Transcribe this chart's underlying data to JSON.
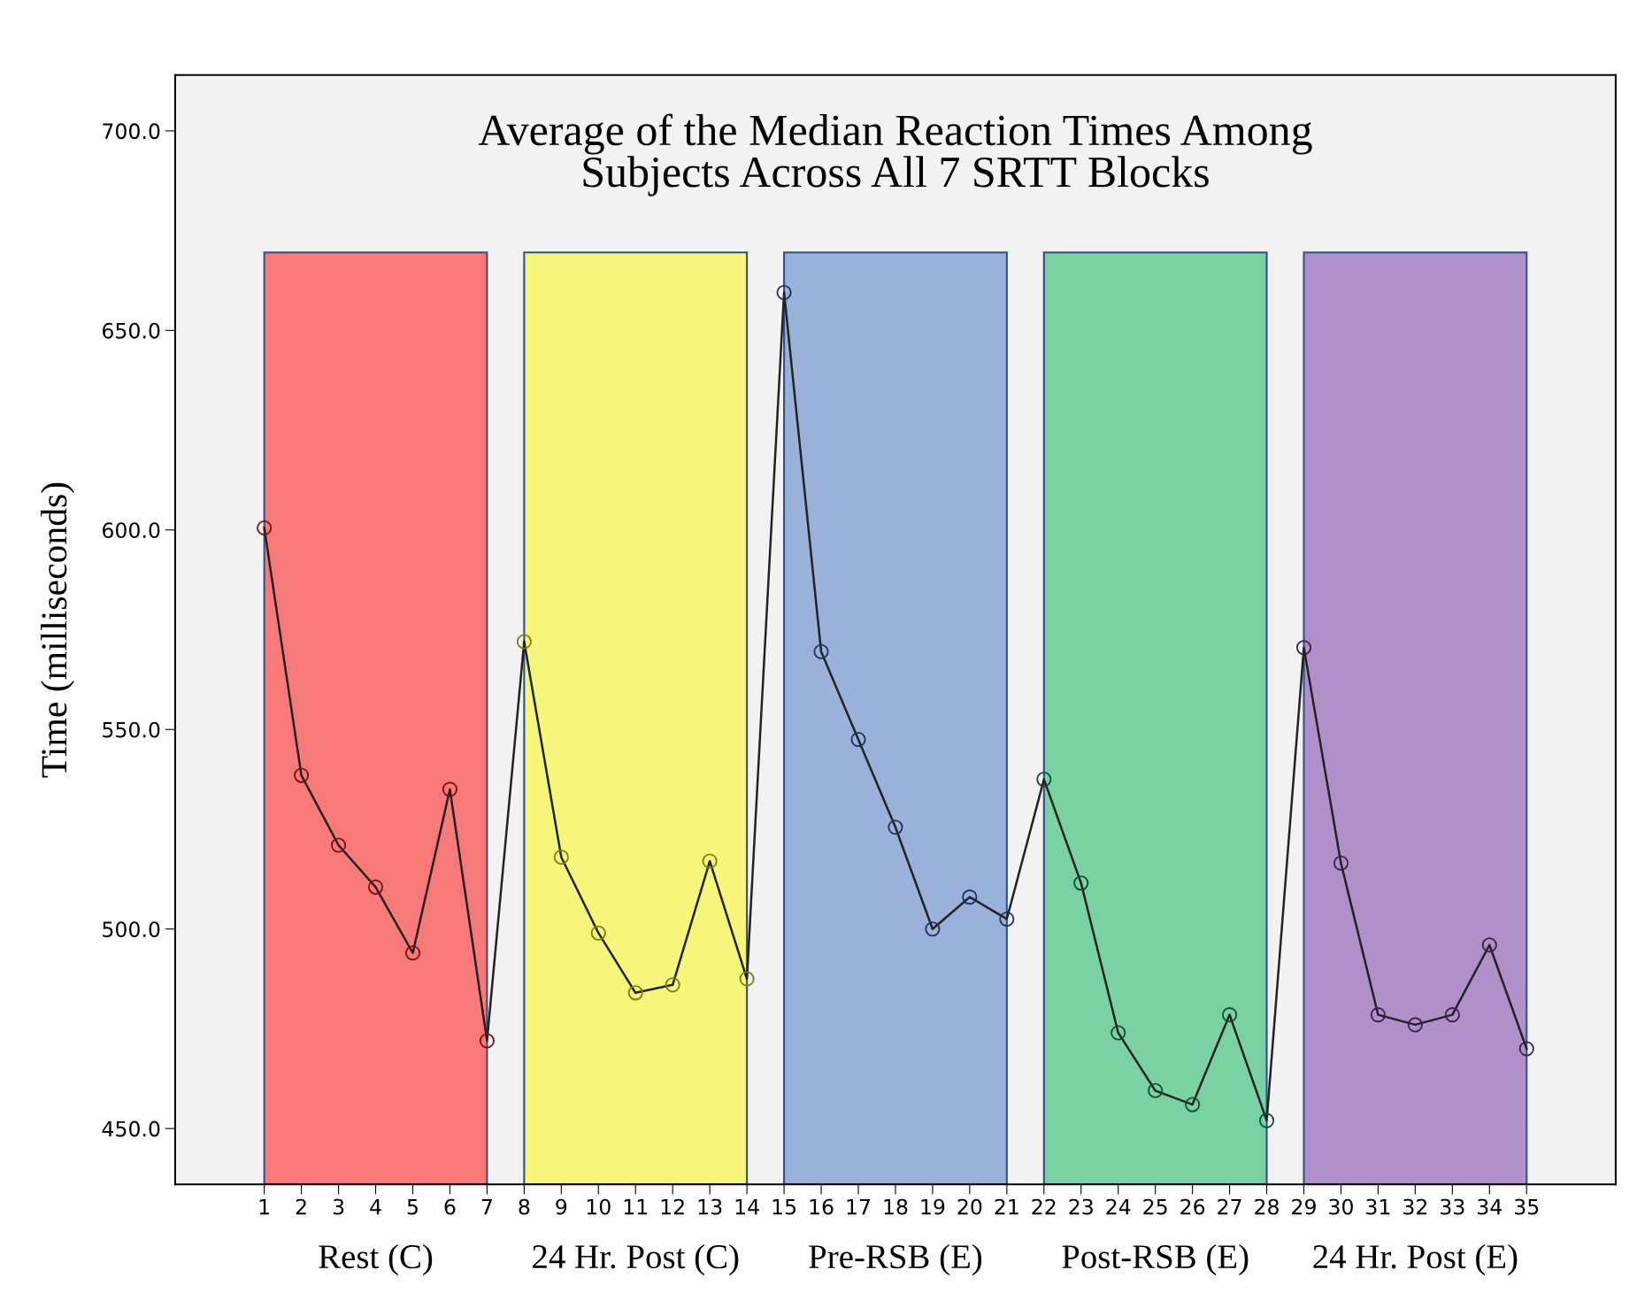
{
  "chart_data": {
    "type": "line",
    "title": "Average of the Median Reaction Times Among\nSubjects Across All 7 SRTT Blocks",
    "ylabel": "Time (milliseconds)",
    "xlim": [
      -1.4,
      37.4
    ],
    "xticks": [
      1,
      2,
      3,
      4,
      5,
      6,
      7,
      8,
      9,
      10,
      11,
      12,
      13,
      14,
      15,
      16,
      17,
      18,
      19,
      20,
      21,
      22,
      23,
      24,
      25,
      26,
      27,
      28,
      29,
      30,
      31,
      32,
      33,
      34,
      35
    ],
    "ylim": [
      436,
      714
    ],
    "yticks": [
      {
        "value": 450,
        "label": "450.0"
      },
      {
        "value": 500,
        "label": "500.0"
      },
      {
        "value": 550,
        "label": "550.0"
      },
      {
        "value": 600,
        "label": "600.0"
      },
      {
        "value": 650,
        "label": "650.0"
      },
      {
        "value": 700,
        "label": "700.0"
      }
    ],
    "grid": false,
    "legend": false,
    "marker": "circle",
    "line_style": "solid",
    "bands": [
      {
        "axis": "x",
        "from": 1,
        "to": 7,
        "label": "Rest (C)",
        "color": "#f87a78"
      },
      {
        "axis": "x",
        "from": 8,
        "to": 14,
        "label": "24 Hr. Post (C)",
        "color": "#f6f77a"
      },
      {
        "axis": "x",
        "from": 15,
        "to": 21,
        "label": "Pre-RSB (E)",
        "color": "#9ab1da"
      },
      {
        "axis": "x",
        "from": 22,
        "to": 28,
        "label": "Post-RSB (E)",
        "color": "#7ad1a1"
      },
      {
        "axis": "x",
        "from": 29,
        "to": 35,
        "label": "24 Hr. Post (E)",
        "color": "#b190c9"
      }
    ],
    "series": [
      {
        "color": "#222222",
        "x": [
          1,
          2,
          3,
          4,
          5,
          6,
          7,
          8,
          9,
          10,
          11,
          12,
          13,
          14,
          15,
          16,
          17,
          18,
          19,
          20,
          21,
          22,
          23,
          24,
          25,
          26,
          27,
          28,
          29,
          30,
          31,
          32,
          33,
          34,
          35
        ],
        "values": [
          600.5,
          538.5,
          521,
          510.5,
          494,
          535,
          472,
          572,
          518,
          499,
          484,
          486,
          517,
          487.5,
          659.5,
          569.5,
          547.5,
          525.5,
          500,
          508,
          502.5,
          537.5,
          511.5,
          474,
          459.5,
          456,
          478.5,
          452,
          570.5,
          516.5,
          478.5,
          476,
          478.5,
          496,
          470
        ],
        "colors": [
          "#7a1010",
          "#7a1010",
          "#7a1010",
          "#7a1010",
          "#7a1010",
          "#7a1010",
          "#7a1010",
          "#7d7d10",
          "#7d7d10",
          "#7d7d10",
          "#7d7d10",
          "#7d7d10",
          "#7d7d10",
          "#7d7d10",
          "#1f2f5f",
          "#1f2f5f",
          "#1f2f5f",
          "#1f2f5f",
          "#1f2f5f",
          "#1f2f5f",
          "#1f2f5f",
          "#0f4f2f",
          "#0f4f2f",
          "#0f4f2f",
          "#0f4f2f",
          "#0f4f2f",
          "#0f4f2f",
          "#0f4f2f",
          "#3a1f4a",
          "#3a1f4a",
          "#3a1f4a",
          "#3a1f4a",
          "#3a1f4a",
          "#3a1f4a",
          "#3a1f4a"
        ]
      }
    ]
  }
}
